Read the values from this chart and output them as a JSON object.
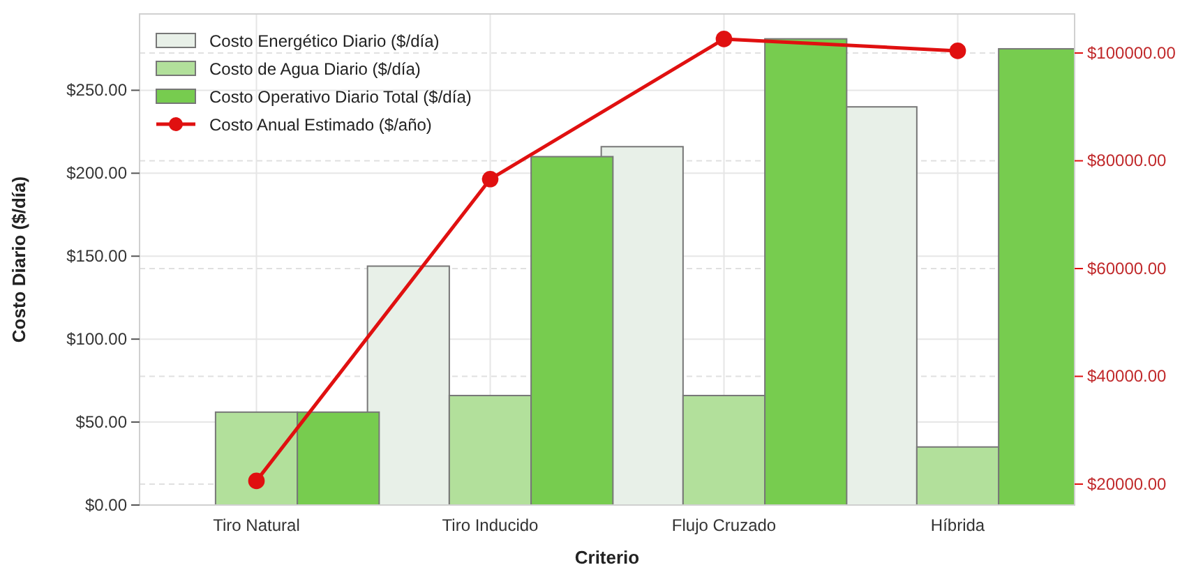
{
  "chart_data": {
    "type": "bar",
    "xlabel": "Criterio",
    "ylabel": "Costo Diario ($/día)",
    "categories": [
      "Tiro Natural",
      "Tiro Inducido",
      "Flujo Cruzado",
      "Híbrida"
    ],
    "series": [
      {
        "name": "Costo Energético Diario ($/día)",
        "color": "#e8f0e8",
        "values": [
          0,
          144,
          216,
          240
        ]
      },
      {
        "name": "Costo de Agua Diario ($/día)",
        "color": "#b2e09b",
        "values": [
          56,
          66,
          66,
          35
        ]
      },
      {
        "name": "Costo Operativo Diario Total ($/día)",
        "color": "#77cc4f",
        "values": [
          56,
          210,
          281,
          275
        ]
      },
      {
        "name": "Costo Anual Estimado ($/año)",
        "color": "#e01010",
        "type": "line",
        "axis": "y2",
        "marker": "circle",
        "values": [
          20600,
          76600,
          102600,
          100400
        ]
      }
    ],
    "ylim": [
      0,
      296
    ],
    "yticks": [
      {
        "value": 0,
        "label": "$0.00"
      },
      {
        "value": 50,
        "label": "$50.00"
      },
      {
        "value": 100,
        "label": "$100.00"
      },
      {
        "value": 150,
        "label": "$150.00"
      },
      {
        "value": 200,
        "label": "$200.00"
      },
      {
        "value": 250,
        "label": "$250.00"
      }
    ],
    "y2lim": [
      16120,
      107250
    ],
    "y2ticks": [
      {
        "value": 20000,
        "label": "$20000.00"
      },
      {
        "value": 40000,
        "label": "$40000.00"
      },
      {
        "value": 60000,
        "label": "$60000.00"
      },
      {
        "value": 80000,
        "label": "$80000.00"
      },
      {
        "value": 100000,
        "label": "$100000.00"
      }
    ],
    "grid": true,
    "legend": "top left"
  }
}
